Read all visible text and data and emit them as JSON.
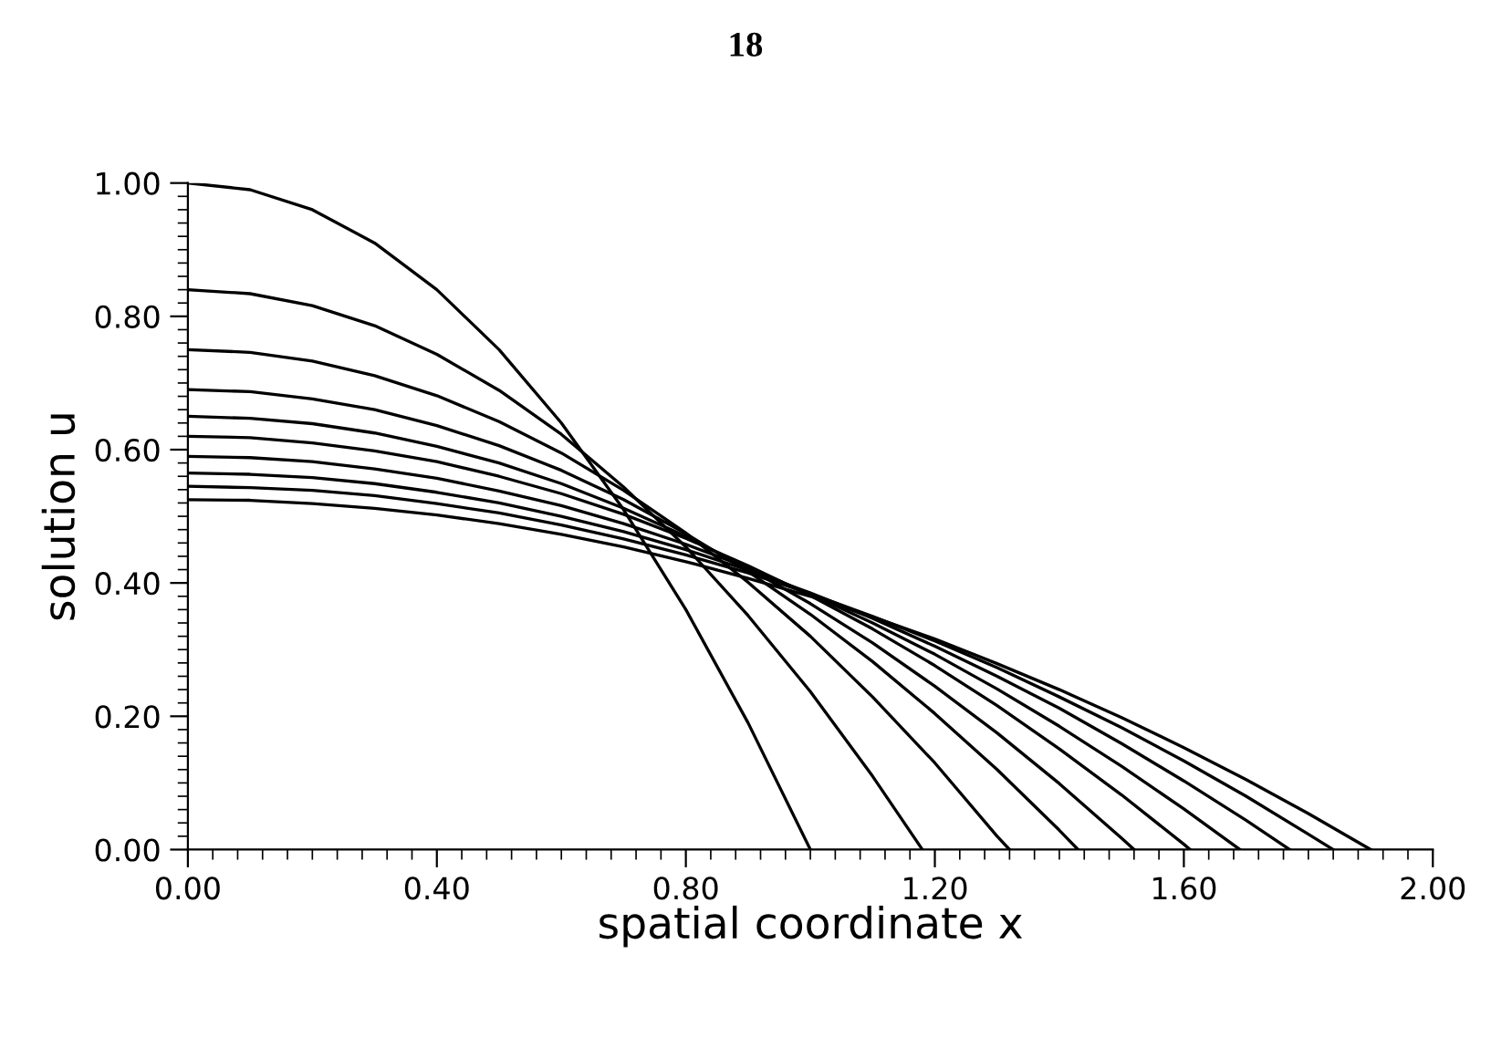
{
  "chart_data": {
    "type": "line",
    "xlabel": "spatial coordinate x",
    "ylabel": "solution u",
    "annotations": [
      "18"
    ],
    "xlim": [
      0,
      2
    ],
    "ylim": [
      0,
      1
    ],
    "xticks": [
      {
        "value": 0,
        "label": "0.00"
      },
      {
        "value": 0.4,
        "label": "0.40"
      },
      {
        "value": 0.8,
        "label": "0.80"
      },
      {
        "value": 1.2,
        "label": "1.20"
      },
      {
        "value": 1.6,
        "label": "1.60"
      },
      {
        "value": 2,
        "label": "2.00"
      }
    ],
    "yticks": [
      {
        "value": 0,
        "label": "0.00"
      },
      {
        "value": 0.2,
        "label": "0.20"
      },
      {
        "value": 0.4,
        "label": "0.40"
      },
      {
        "value": 0.6,
        "label": "0.60"
      },
      {
        "value": 0.8,
        "label": "0.80"
      },
      {
        "value": 1,
        "label": "1.00"
      }
    ],
    "grid": false,
    "legend": false,
    "marker": "none",
    "line_style": "solid",
    "series": [
      {
        "color": "#000000",
        "x": [
          0,
          0.1,
          0.2,
          0.3,
          0.4,
          0.5,
          0.6,
          0.7,
          0.8,
          0.9,
          1.0
        ],
        "values": [
          1,
          0.99,
          0.96,
          0.91,
          0.84,
          0.75,
          0.64,
          0.51,
          0.36,
          0.19,
          0
        ]
      },
      {
        "color": "#000000",
        "x": [
          0,
          0.1,
          0.2,
          0.3,
          0.4,
          0.5,
          0.6,
          0.7,
          0.8,
          0.9,
          1.0,
          1.1,
          1.18
        ],
        "values": [
          0.84,
          0.834,
          0.816,
          0.786,
          0.743,
          0.689,
          0.623,
          0.544,
          0.454,
          0.351,
          0.237,
          0.11,
          0
        ]
      },
      {
        "color": "#000000",
        "x": [
          0,
          0.1,
          0.2,
          0.3,
          0.4,
          0.5,
          0.6,
          0.7,
          0.8,
          0.9,
          1.0,
          1.1,
          1.2,
          1.3,
          1.32
        ],
        "values": [
          0.75,
          0.746,
          0.733,
          0.711,
          0.681,
          0.642,
          0.595,
          0.539,
          0.475,
          0.401,
          0.32,
          0.229,
          0.13,
          0.02,
          0
        ]
      },
      {
        "color": "#000000",
        "x": [
          0,
          0.1,
          0.2,
          0.3,
          0.4,
          0.5,
          0.6,
          0.7,
          0.8,
          0.9,
          1.0,
          1.1,
          1.2,
          1.3,
          1.4,
          1.43
        ],
        "values": [
          0.69,
          0.687,
          0.676,
          0.66,
          0.636,
          0.606,
          0.569,
          0.525,
          0.474,
          0.417,
          0.353,
          0.282,
          0.204,
          0.12,
          0.029,
          0
        ]
      },
      {
        "color": "#000000",
        "x": [
          0,
          0.1,
          0.2,
          0.3,
          0.4,
          0.5,
          0.6,
          0.7,
          0.8,
          0.9,
          1.0,
          1.1,
          1.2,
          1.3,
          1.4,
          1.5,
          1.52
        ],
        "values": [
          0.65,
          0.647,
          0.639,
          0.625,
          0.605,
          0.58,
          0.549,
          0.512,
          0.47,
          0.422,
          0.369,
          0.31,
          0.245,
          0.175,
          0.099,
          0.017,
          0
        ]
      },
      {
        "color": "#000000",
        "x": [
          0,
          0.1,
          0.2,
          0.3,
          0.4,
          0.5,
          0.6,
          0.7,
          0.8,
          0.9,
          1.0,
          1.1,
          1.2,
          1.3,
          1.4,
          1.5,
          1.6,
          1.61
        ],
        "values": [
          0.62,
          0.618,
          0.61,
          0.598,
          0.582,
          0.56,
          0.534,
          0.503,
          0.467,
          0.426,
          0.381,
          0.331,
          0.276,
          0.216,
          0.151,
          0.082,
          0.008,
          0
        ]
      },
      {
        "color": "#000000",
        "x": [
          0,
          0.1,
          0.2,
          0.3,
          0.4,
          0.5,
          0.6,
          0.7,
          0.8,
          0.9,
          1.0,
          1.1,
          1.2,
          1.3,
          1.4,
          1.5,
          1.6,
          1.69
        ],
        "values": [
          0.59,
          0.588,
          0.582,
          0.571,
          0.557,
          0.538,
          0.516,
          0.489,
          0.458,
          0.423,
          0.383,
          0.34,
          0.293,
          0.241,
          0.185,
          0.125,
          0.061,
          0
        ]
      },
      {
        "color": "#000000",
        "x": [
          0,
          0.1,
          0.2,
          0.3,
          0.4,
          0.5,
          0.6,
          0.7,
          0.8,
          0.9,
          1.0,
          1.1,
          1.2,
          1.3,
          1.4,
          1.5,
          1.6,
          1.7,
          1.77
        ],
        "values": [
          0.565,
          0.563,
          0.558,
          0.549,
          0.536,
          0.52,
          0.5,
          0.477,
          0.45,
          0.419,
          0.385,
          0.347,
          0.305,
          0.26,
          0.212,
          0.159,
          0.103,
          0.044,
          0
        ]
      },
      {
        "color": "#000000",
        "x": [
          0,
          0.1,
          0.2,
          0.3,
          0.4,
          0.5,
          0.6,
          0.7,
          0.8,
          0.9,
          1.0,
          1.1,
          1.2,
          1.3,
          1.4,
          1.5,
          1.6,
          1.7,
          1.8,
          1.84
        ],
        "values": [
          0.545,
          0.543,
          0.539,
          0.531,
          0.519,
          0.505,
          0.487,
          0.466,
          0.442,
          0.415,
          0.384,
          0.35,
          0.313,
          0.273,
          0.229,
          0.183,
          0.133,
          0.08,
          0.023,
          0
        ]
      },
      {
        "color": "#000000",
        "x": [
          0,
          0.1,
          0.2,
          0.3,
          0.4,
          0.5,
          0.6,
          0.7,
          0.8,
          0.9,
          1.0,
          1.1,
          1.2,
          1.3,
          1.4,
          1.5,
          1.6,
          1.7,
          1.8,
          1.9
        ],
        "values": [
          0.525,
          0.524,
          0.519,
          0.512,
          0.502,
          0.489,
          0.473,
          0.454,
          0.432,
          0.407,
          0.38,
          0.349,
          0.316,
          0.279,
          0.24,
          0.198,
          0.153,
          0.105,
          0.054,
          0
        ]
      }
    ]
  }
}
